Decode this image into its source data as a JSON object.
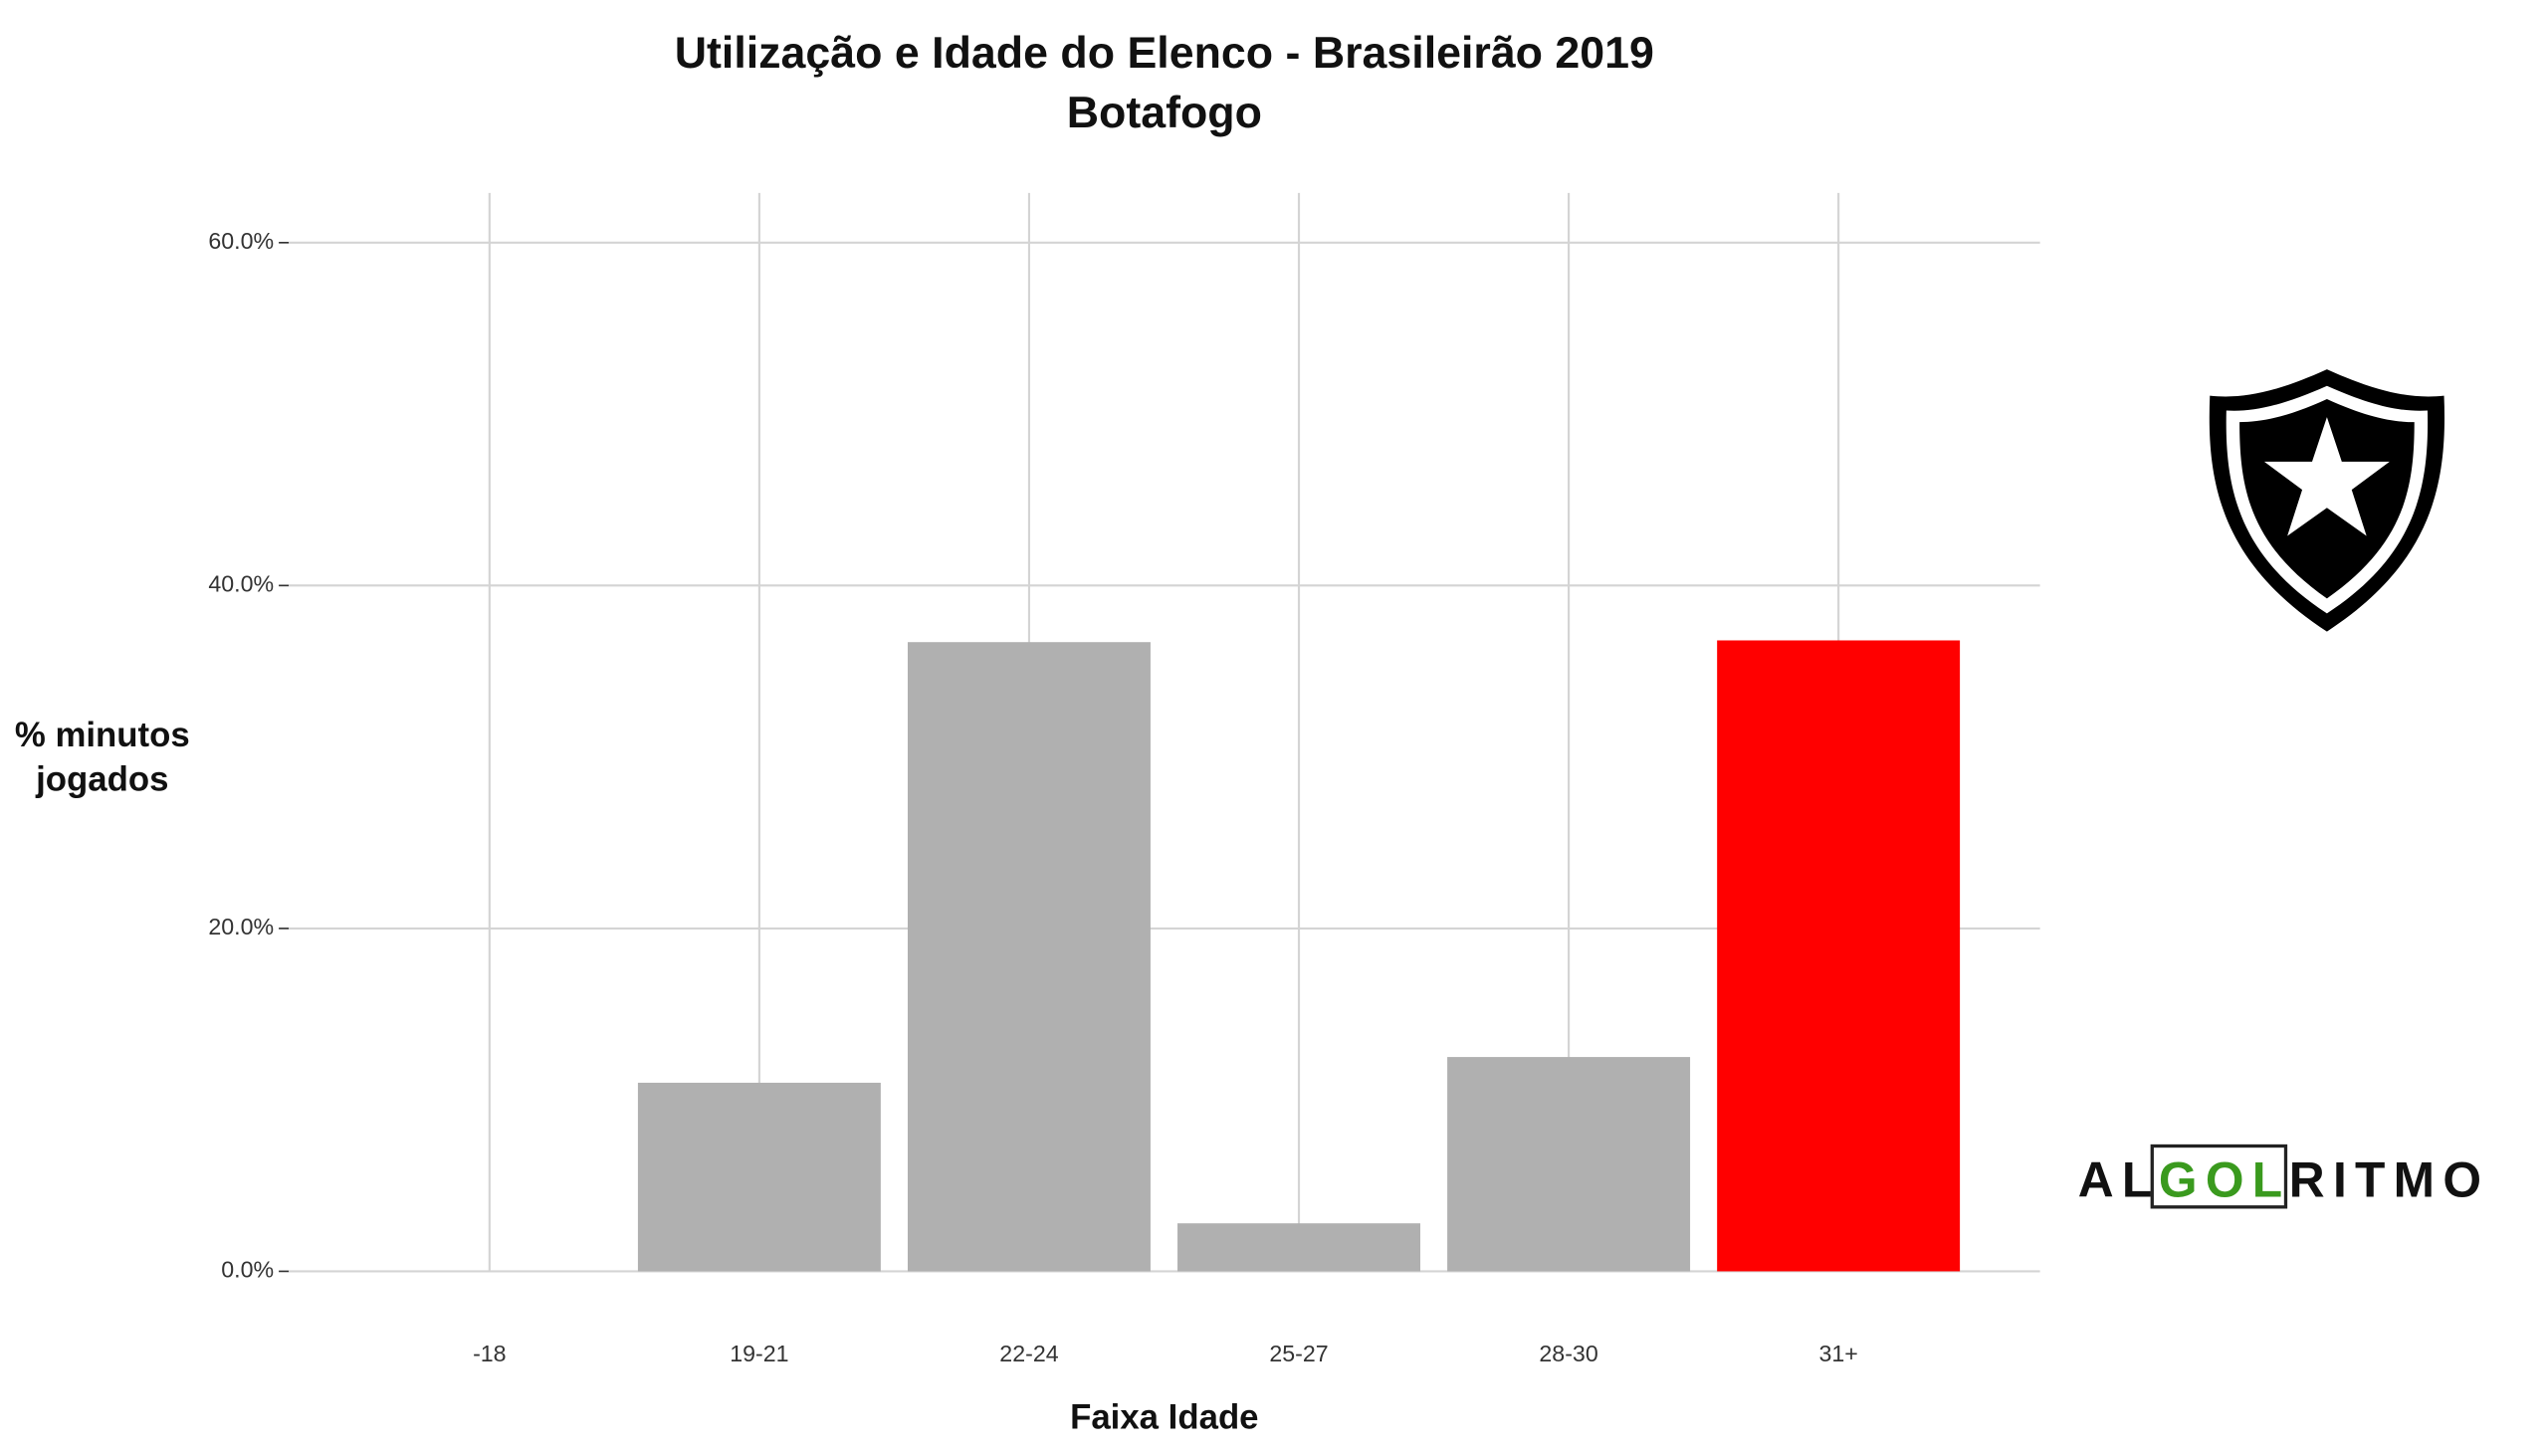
{
  "chart_data": {
    "type": "bar",
    "title": "Utilização e Idade do Elenco - Brasileirão 2019",
    "subtitle": "Botafogo",
    "x_label": "Faixa Idade",
    "y_label": [
      "% minutos",
      "jogados"
    ],
    "categories": [
      "-18",
      "19-21",
      "22-24",
      "25-27",
      "28-30",
      "31+"
    ],
    "values": [
      0,
      11.0,
      36.7,
      2.8,
      12.5,
      36.8
    ],
    "colors": [
      "#b0b0b0",
      "#b0b0b0",
      "#b0b0b0",
      "#b0b0b0",
      "#b0b0b0",
      "#ff0000"
    ],
    "ylim": [
      0,
      62.9
    ],
    "yticks": [
      {
        "value": 0,
        "label": "0.0%"
      },
      {
        "value": 20,
        "label": "20.0%"
      },
      {
        "value": 40,
        "label": "40.0%"
      },
      {
        "value": 60,
        "label": "60.0%"
      }
    ],
    "grid": true,
    "logo_text": [
      "AL",
      "GOL",
      "RITMO"
    ]
  }
}
